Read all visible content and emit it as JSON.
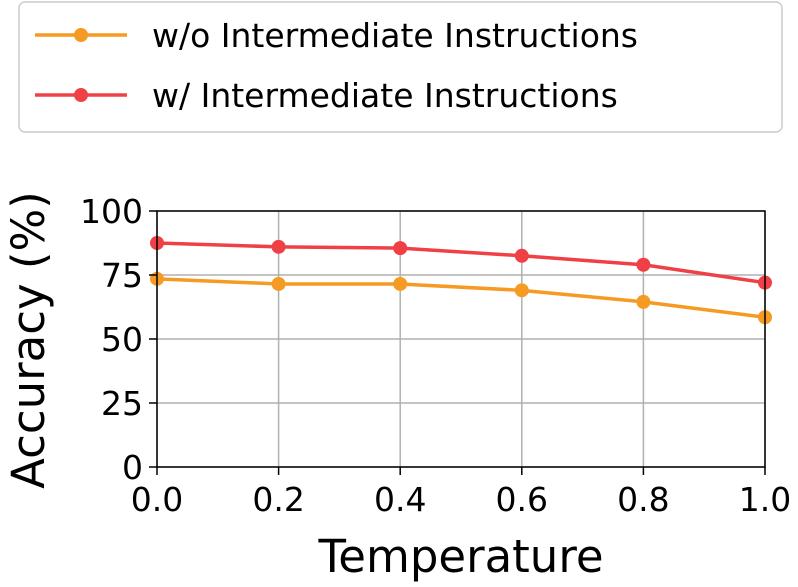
{
  "chart_data": {
    "type": "line",
    "title": "",
    "xlabel": "Temperature",
    "ylabel": "Accuracy (%)",
    "x": [
      0.0,
      0.2,
      0.4,
      0.6,
      0.8,
      1.0
    ],
    "x_tick_labels": [
      "0.0",
      "0.2",
      "0.4",
      "0.6",
      "0.8",
      "1.0"
    ],
    "y_ticks": [
      0,
      25,
      50,
      75,
      100
    ],
    "y_tick_labels": [
      "0",
      "25",
      "50",
      "75",
      "100"
    ],
    "xlim": [
      0.0,
      1.0
    ],
    "ylim": [
      0,
      100
    ],
    "grid": true,
    "legend_position": "top",
    "series": [
      {
        "name": "w/o Intermediate Instructions",
        "color": "#f59a23",
        "values": [
          73.5,
          71.5,
          71.5,
          69,
          64.5,
          58.5
        ]
      },
      {
        "name": "w/ Intermediate Instructions",
        "color": "#ef4045",
        "values": [
          87.5,
          86,
          85.5,
          82.5,
          79,
          72
        ]
      }
    ]
  }
}
